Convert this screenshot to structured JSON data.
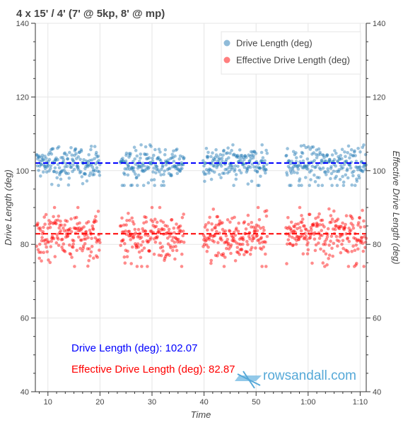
{
  "chart_data": {
    "type": "scatter",
    "title": "4 x 15' / 4' (7' @ 5kp, 8' @ mp)",
    "xlabel": "Time",
    "ylabel_left": "Drive Length (deg)",
    "ylabel_right": "Effective Drive Length (deg)",
    "x_range_seconds": [
      455,
      4270
    ],
    "x_ticks": [
      {
        "value": 600,
        "label": "10"
      },
      {
        "value": 1200,
        "label": "20"
      },
      {
        "value": 1800,
        "label": "30"
      },
      {
        "value": 2400,
        "label": "40"
      },
      {
        "value": 3000,
        "label": "50"
      },
      {
        "value": 3600,
        "label": "1:00"
      },
      {
        "value": 4200,
        "label": "1:10"
      }
    ],
    "ylim": [
      40,
      140
    ],
    "y_ticks": [
      40,
      60,
      80,
      100,
      120,
      140
    ],
    "grid": true,
    "legend_position": "top-right",
    "work_intervals_seconds": [
      [
        470,
        1200
      ],
      [
        1435,
        2170
      ],
      [
        2390,
        3130
      ],
      [
        3345,
        4270
      ]
    ],
    "series": [
      {
        "name": "Drive Length (deg)",
        "color": "#1f77b4",
        "mean": 102.07,
        "mean_color": "#0000ff",
        "summary": "Drive Length (deg): 102.07",
        "typical_range": [
          96,
          107
        ],
        "scatter_sd": 2.2
      },
      {
        "name": "Effective Drive Length (deg)",
        "color": "#ff0000",
        "mean": 82.87,
        "mean_color": "#ff0000",
        "summary": "Effective Drive Length (deg): 82.87",
        "typical_range": [
          74,
          90
        ],
        "scatter_sd": 3.2
      }
    ]
  },
  "watermark": {
    "text": "rowsandall.com",
    "color": "#56a9d8"
  }
}
